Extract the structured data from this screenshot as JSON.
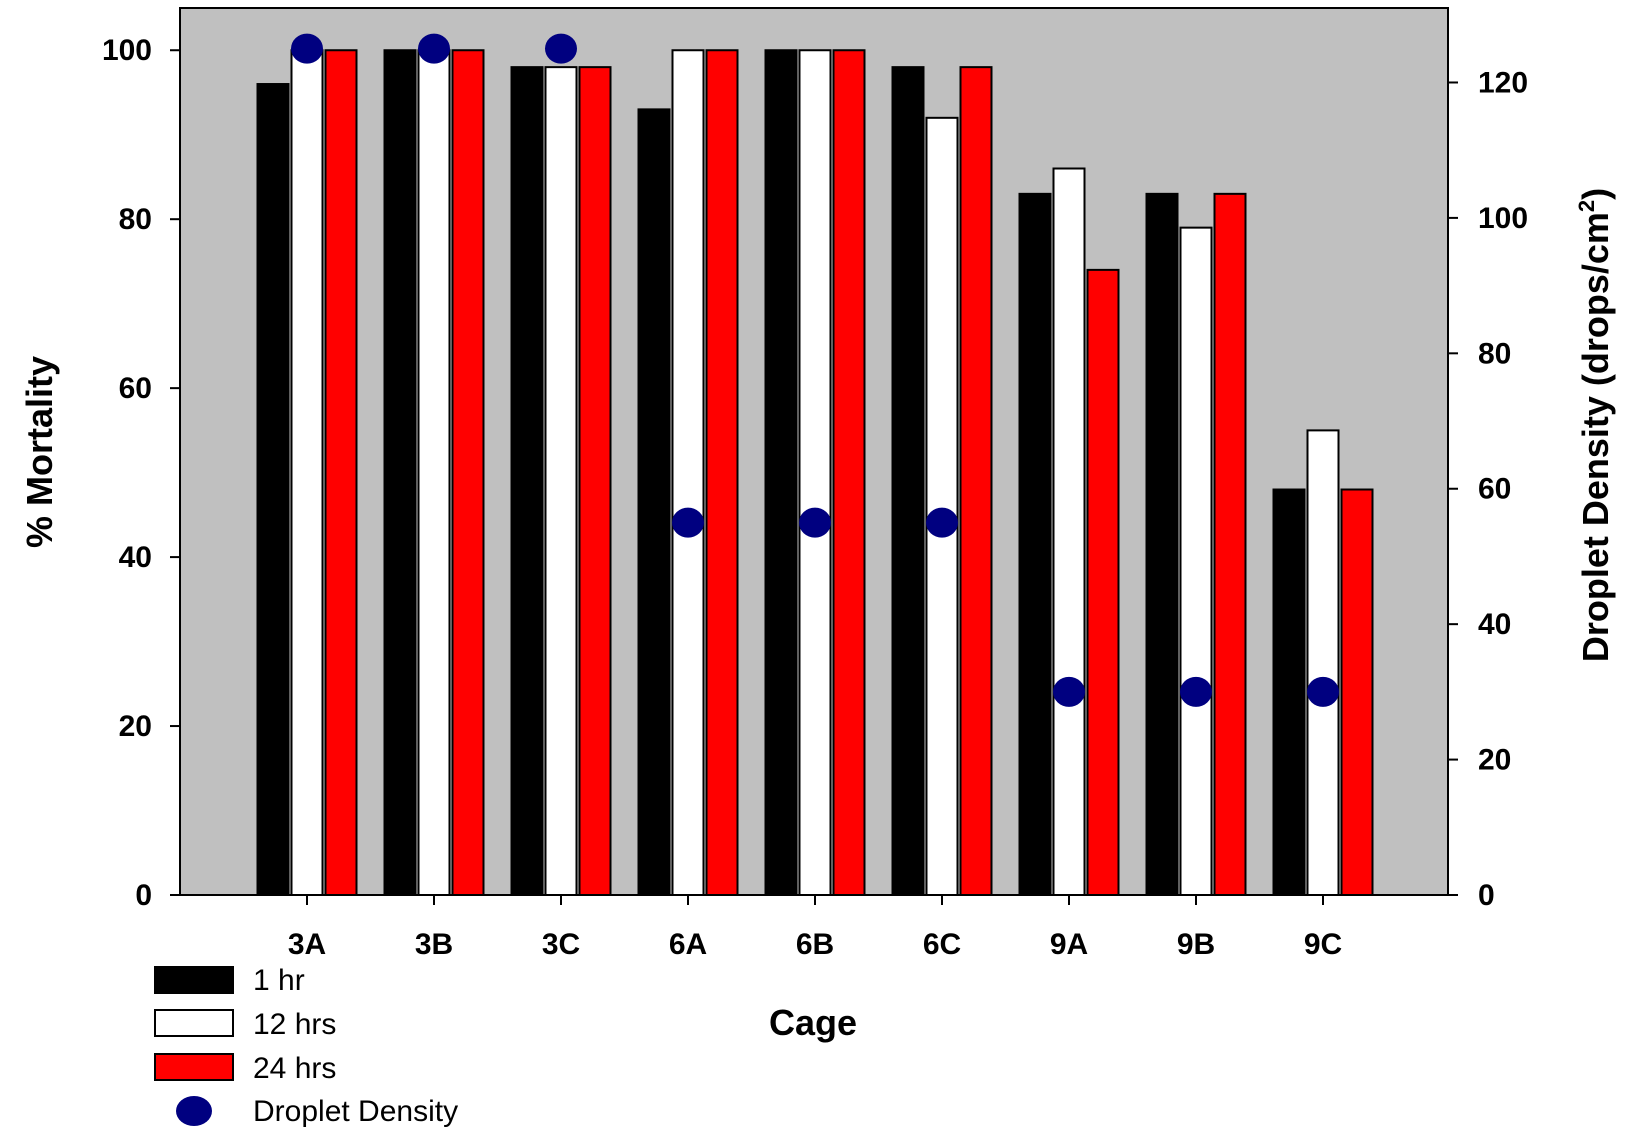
{
  "chart_data": {
    "type": "bar",
    "categories": [
      "3A",
      "3B",
      "3C",
      "6A",
      "6B",
      "6C",
      "9A",
      "9B",
      "9C"
    ],
    "series": [
      {
        "name": "1 hr",
        "color": "#000000",
        "values": [
          96,
          100,
          98,
          93,
          100,
          98,
          83,
          83,
          48
        ]
      },
      {
        "name": "12 hrs",
        "color": "#ffffff",
        "values": [
          100,
          100,
          98,
          100,
          100,
          92,
          86,
          79,
          55
        ]
      },
      {
        "name": "24 hrs",
        "color": "#ff0000",
        "values": [
          100,
          100,
          98,
          100,
          100,
          98,
          74,
          83,
          48
        ]
      }
    ],
    "secondary_series": {
      "name": "Droplet Density",
      "type": "scatter",
      "color": "#000080",
      "values": [
        125,
        125,
        125,
        55,
        55,
        55,
        30,
        30,
        30
      ]
    },
    "xlabel": "Cage",
    "ylabel": "% Mortality",
    "ylabel_right": "Droplet Density (drops/cm",
    "ylabel_right_sup": "2",
    "ylabel_right_close": ")",
    "ylim": [
      0,
      105
    ],
    "ylim_right": [
      0,
      131
    ],
    "yticks": [
      0,
      20,
      40,
      60,
      80,
      100
    ],
    "yticks_right": [
      0,
      20,
      40,
      60,
      80,
      100,
      120
    ],
    "plot_background": "#c0c0c0",
    "grid": false,
    "legend_position": "bottom-left"
  }
}
